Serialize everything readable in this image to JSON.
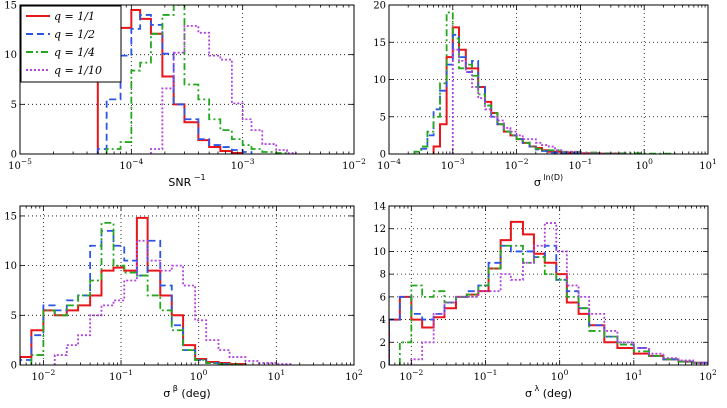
{
  "legend_labels": [
    "q = 1/1",
    "q = 1/2",
    "q = 1/4",
    "q = 1/10"
  ],
  "series_colors": [
    "#e8161b",
    "#2a55e6",
    "#25a81f",
    "#b144e0"
  ],
  "series_styles": [
    "solid",
    "dashed",
    "dashdot",
    "dotted"
  ],
  "chart_data": [
    {
      "type": "bar",
      "title": "",
      "xlabel": "SNR",
      "xlabel_sup": "−1",
      "ylabel": "",
      "xscale": "log",
      "xlim": [
        1e-05,
        0.01
      ],
      "ylim": [
        0,
        15
      ],
      "yticks": [
        0,
        5,
        10,
        15
      ],
      "ytick_labels": [
        "0",
        "5",
        "10",
        "15"
      ],
      "xtick_exponents": [
        "−5",
        "−4",
        "−3",
        "−2"
      ],
      "grid": true,
      "legend": "top-left",
      "series": [
        {
          "name": "q = 1/1",
          "edges": [
            5e-05,
            6e-05,
            8e-05,
            0.0001,
            0.00012,
            0.00015,
            0.00019,
            0.00024,
            0.0003,
            0.0004,
            0.0005,
            0.00063,
            0.0008,
            0.001
          ],
          "values": [
            7.3,
            10.1,
            12.7,
            14.5,
            13.6,
            12.1,
            7.8,
            5.0,
            3.2,
            1.4,
            0.7,
            0.3,
            0.1
          ]
        },
        {
          "name": "q = 1/2",
          "edges": [
            5e-05,
            6e-05,
            8e-05,
            0.0001,
            0.00012,
            0.00015,
            0.00019,
            0.00024,
            0.0003,
            0.0004,
            0.0005,
            0.00063,
            0.0008,
            0.001,
            0.0012
          ],
          "values": [
            0.5,
            5.5,
            9.9,
            12.6,
            14.0,
            13.0,
            10.1,
            5.0,
            3.5,
            1.5,
            0.9,
            0.7,
            0.4,
            0.2
          ]
        },
        {
          "name": "q = 1/4",
          "edges": [
            6e-05,
            8e-05,
            0.0001,
            0.00012,
            0.00015,
            0.00019,
            0.00024,
            0.0003,
            0.0004,
            0.0005,
            0.00063,
            0.0008,
            0.001,
            0.0012,
            0.0015,
            0.002,
            0.0025
          ],
          "values": [
            0.5,
            1.2,
            8.4,
            9.2,
            12.1,
            14.0,
            15.0,
            7.0,
            5.5,
            3.5,
            2.4,
            1.5,
            0.9,
            0.5,
            0.2,
            0.1
          ]
        },
        {
          "name": "q = 1/10",
          "edges": [
            0.00015,
            0.00019,
            0.00024,
            0.0003,
            0.0004,
            0.0005,
            0.00063,
            0.0008,
            0.001,
            0.0012,
            0.0015,
            0.002,
            0.0025,
            0.003
          ],
          "values": [
            0.5,
            6.6,
            10.2,
            12.9,
            12.2,
            9.9,
            9.5,
            5.1,
            3.5,
            2.4,
            1.0,
            0.4,
            0.1
          ]
        }
      ]
    },
    {
      "type": "bar",
      "title": "",
      "xlabel": "σ",
      "xlabel_sup": "ln(D)",
      "ylabel": "",
      "xscale": "log",
      "xlim": [
        0.0001,
        10
      ],
      "ylim": [
        0,
        20
      ],
      "yticks": [
        0,
        5,
        10,
        15,
        20
      ],
      "ytick_labels": [
        "0",
        "5",
        "10",
        "15",
        "20"
      ],
      "xtick_exponents": [
        "−4",
        "−3",
        "−2",
        "−1",
        "0",
        "1"
      ],
      "grid": true,
      "series": [
        {
          "name": "q = 1/1",
          "edges": [
            0.0005,
            0.00063,
            0.0008,
            0.001,
            0.00125,
            0.0016,
            0.002,
            0.0025,
            0.0032,
            0.004,
            0.005,
            0.0063,
            0.008,
            0.01,
            0.0125,
            0.016,
            0.02,
            0.025,
            0.032,
            0.05,
            0.1,
            0.2,
            0.5
          ],
          "values": [
            1.0,
            4.0,
            13.0,
            17.0,
            14.0,
            11.5,
            11.5,
            9.0,
            7.0,
            5.5,
            4.0,
            3.0,
            2.5,
            2.0,
            1.5,
            1.0,
            0.8,
            0.5,
            0.3,
            0.2,
            0.1,
            0.05
          ]
        },
        {
          "name": "q = 1/2",
          "edges": [
            0.00025,
            0.00032,
            0.0004,
            0.0005,
            0.00063,
            0.0008,
            0.001,
            0.00125,
            0.0016,
            0.002,
            0.0025,
            0.0032,
            0.004,
            0.005,
            0.0063,
            0.008,
            0.01,
            0.0125,
            0.016,
            0.02,
            0.025,
            0.032,
            0.05,
            0.1
          ],
          "values": [
            0.3,
            0.7,
            2.5,
            6.0,
            8.5,
            12.0,
            16.0,
            13.0,
            11.0,
            12.5,
            9.0,
            6.5,
            5.0,
            4.0,
            3.0,
            2.5,
            2.0,
            1.5,
            1.0,
            0.6,
            0.4,
            0.2,
            0.1
          ]
        },
        {
          "name": "q = 1/4",
          "edges": [
            0.00025,
            0.00032,
            0.0004,
            0.0005,
            0.00063,
            0.0008,
            0.001,
            0.00125,
            0.0016,
            0.002,
            0.0025,
            0.0032,
            0.004,
            0.005,
            0.0063,
            0.008,
            0.01,
            0.0125,
            0.016,
            0.02,
            0.025,
            0.032,
            0.05,
            0.1,
            0.2,
            0.5,
            1,
            3
          ],
          "values": [
            0.3,
            1.0,
            3.0,
            5.0,
            9.5,
            19.0,
            15.5,
            11.5,
            12.0,
            10.5,
            8.0,
            6.5,
            5.5,
            4.0,
            3.0,
            2.5,
            2.0,
            1.5,
            1.0,
            0.7,
            0.5,
            0.5,
            0.3,
            0.2,
            0.1,
            0.1,
            0.05
          ]
        },
        {
          "name": "q = 1/10",
          "edges": [
            0.001,
            0.00125,
            0.0016,
            0.002,
            0.0025,
            0.0032,
            0.004,
            0.005,
            0.0063,
            0.008,
            0.01,
            0.0125,
            0.016,
            0.02,
            0.025,
            0.032,
            0.04,
            0.05,
            0.1,
            0.2,
            0.5
          ],
          "values": [
            14.0,
            12.5,
            11.0,
            9.0,
            7.5,
            6.0,
            5.0,
            4.5,
            3.5,
            3.0,
            2.5,
            2.0,
            2.0,
            1.5,
            1.2,
            1.0,
            0.5,
            0.3,
            0.1,
            0.05
          ]
        }
      ]
    },
    {
      "type": "bar",
      "title": "",
      "xlabel": "σ",
      "xlabel_sup": "β",
      "xlabel_suffix": " (deg)",
      "ylabel": "",
      "xscale": "log",
      "xlim": [
        0.005,
        100
      ],
      "ylim": [
        0,
        16
      ],
      "yticks": [
        0,
        5,
        10,
        15
      ],
      "ytick_labels": [
        "0",
        "5",
        "10",
        "15"
      ],
      "xtick_exponents": [
        "−2",
        "−1",
        "0",
        "1",
        "2"
      ],
      "grid": true,
      "series": [
        {
          "name": "q = 1/1",
          "edges": [
            0.005,
            0.007,
            0.01,
            0.014,
            0.02,
            0.028,
            0.04,
            0.056,
            0.08,
            0.11,
            0.16,
            0.22,
            0.32,
            0.45,
            0.63,
            0.9,
            1.25,
            1.8,
            2.5,
            4
          ],
          "values": [
            0.8,
            3.5,
            5.5,
            5.0,
            5.5,
            6.0,
            7.0,
            9.5,
            9.8,
            9.5,
            14.8,
            9.5,
            7.0,
            5.0,
            2.0,
            0.6,
            0.3,
            0.2,
            0.1
          ]
        },
        {
          "name": "q = 1/2",
          "edges": [
            0.005,
            0.007,
            0.01,
            0.014,
            0.02,
            0.028,
            0.04,
            0.056,
            0.08,
            0.11,
            0.16,
            0.22,
            0.32,
            0.45,
            0.63,
            0.9,
            1.25,
            1.8,
            2.5
          ],
          "values": [
            0.5,
            3.0,
            6.0,
            5.5,
            6.5,
            7.0,
            12.0,
            13.5,
            12.0,
            10.5,
            9.0,
            12.5,
            8.0,
            4.0,
            1.5,
            0.5,
            0.2,
            0.1
          ]
        },
        {
          "name": "q = 1/4",
          "edges": [
            0.007,
            0.01,
            0.014,
            0.02,
            0.028,
            0.04,
            0.056,
            0.08,
            0.11,
            0.16,
            0.22,
            0.32,
            0.45,
            0.63,
            0.9,
            1.25,
            1.8,
            2.5,
            4
          ],
          "values": [
            1.0,
            5.5,
            5.0,
            6.0,
            7.0,
            8.5,
            14.3,
            10.0,
            9.3,
            9.0,
            7.0,
            5.5,
            3.5,
            1.5,
            0.5,
            0.2,
            0.1,
            0.05
          ]
        },
        {
          "name": "q = 1/10",
          "edges": [
            0.014,
            0.02,
            0.028,
            0.04,
            0.056,
            0.08,
            0.11,
            0.16,
            0.22,
            0.32,
            0.45,
            0.63,
            0.9,
            1.25,
            1.8,
            2.5,
            4,
            6,
            10,
            16
          ],
          "values": [
            1.0,
            2.0,
            3.0,
            5.0,
            6.0,
            6.5,
            8.5,
            12.5,
            10.5,
            9.5,
            10.0,
            8.0,
            4.5,
            2.5,
            1.5,
            0.8,
            0.4,
            0.2,
            0.1
          ]
        }
      ]
    },
    {
      "type": "bar",
      "title": "",
      "xlabel": "σ",
      "xlabel_sup": "λ",
      "xlabel_suffix": " (deg)",
      "ylabel": "",
      "xscale": "log",
      "xlim": [
        0.005,
        100
      ],
      "ylim": [
        0,
        14
      ],
      "yticks": [
        0,
        2,
        4,
        6,
        8,
        10,
        12,
        14
      ],
      "ytick_labels": [
        "0",
        "2",
        "4",
        "6",
        "8",
        "10",
        "12",
        "14"
      ],
      "xtick_exponents": [
        "−2",
        "−1",
        "0",
        "1",
        "2"
      ],
      "grid": true,
      "series": [
        {
          "name": "q = 1/1",
          "edges": [
            0.005,
            0.007,
            0.01,
            0.014,
            0.02,
            0.028,
            0.04,
            0.056,
            0.08,
            0.11,
            0.16,
            0.22,
            0.32,
            0.45,
            0.63,
            0.9,
            1.25,
            1.8,
            2.5,
            4,
            6,
            10,
            16,
            25,
            40,
            63,
            100
          ],
          "values": [
            4.0,
            6.0,
            4.0,
            3.3,
            4.2,
            5.0,
            6.0,
            6.2,
            6.5,
            8.5,
            11.0,
            12.6,
            11.5,
            9.8,
            9.0,
            8.0,
            5.5,
            4.5,
            3.5,
            2.0,
            1.5,
            1.0,
            0.8,
            0.5,
            0.3,
            0.2
          ]
        },
        {
          "name": "q = 1/2",
          "edges": [
            0.005,
            0.007,
            0.01,
            0.014,
            0.02,
            0.028,
            0.04,
            0.056,
            0.08,
            0.11,
            0.16,
            0.22,
            0.32,
            0.45,
            0.63,
            0.9,
            1.25,
            1.8,
            2.5,
            4,
            6,
            10,
            16,
            25,
            40,
            63,
            100
          ],
          "values": [
            4.0,
            6.0,
            4.5,
            4.0,
            4.5,
            5.5,
            6.0,
            6.5,
            7.0,
            9.0,
            10.5,
            10.0,
            10.0,
            9.5,
            10.5,
            7.5,
            6.5,
            5.0,
            3.5,
            2.5,
            1.8,
            1.5,
            0.8,
            0.5,
            0.3,
            0.2
          ]
        },
        {
          "name": "q = 1/4",
          "edges": [
            0.007,
            0.01,
            0.014,
            0.02,
            0.028,
            0.04,
            0.056,
            0.08,
            0.11,
            0.16,
            0.22,
            0.32,
            0.45,
            0.63,
            0.9,
            1.25,
            1.8,
            2.5,
            4,
            6,
            10,
            16,
            25,
            40,
            63,
            100
          ],
          "values": [
            2.0,
            7.0,
            6.0,
            6.5,
            5.5,
            6.0,
            6.2,
            7.0,
            8.5,
            10.5,
            10.5,
            9.0,
            9.5,
            8.0,
            7.5,
            6.0,
            5.0,
            3.0,
            2.5,
            1.8,
            1.2,
            0.8,
            0.5,
            0.3,
            0.2
          ]
        },
        {
          "name": "q = 1/10",
          "edges": [
            0.01,
            0.014,
            0.02,
            0.028,
            0.04,
            0.056,
            0.08,
            0.11,
            0.16,
            0.22,
            0.32,
            0.45,
            0.63,
            0.9,
            1.25,
            1.8,
            2.5,
            4,
            6,
            10,
            16,
            25,
            40,
            63,
            100
          ],
          "values": [
            0.5,
            2.0,
            4.5,
            5.5,
            6.0,
            6.0,
            6.5,
            6.5,
            8.0,
            7.5,
            9.0,
            10.5,
            12.5,
            10.0,
            7.0,
            6.0,
            4.5,
            3.0,
            2.0,
            1.5,
            1.0,
            0.6,
            0.4,
            0.2
          ]
        }
      ]
    }
  ]
}
